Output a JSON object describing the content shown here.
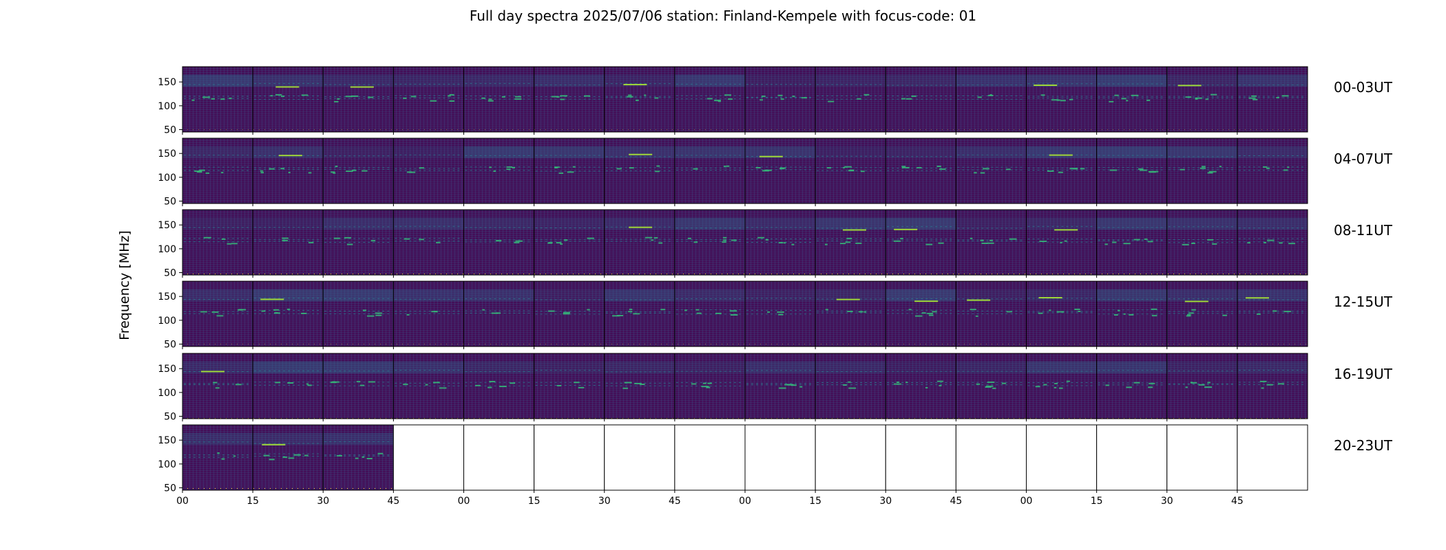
{
  "chart_data": {
    "type": "heatmap",
    "title": "Full day spectra 2025/07/06 station: Finland-Kempele with focus-code: 01",
    "ylabel": "Frequency [MHz]",
    "xlabel": "",
    "ylim": [
      45,
      182
    ],
    "y_ticks": [
      "50",
      "100",
      "150"
    ],
    "x_tick_labels": [
      "00",
      "15",
      "30",
      "45",
      "00",
      "15",
      "30",
      "45",
      "00",
      "15",
      "30",
      "45",
      "00",
      "15",
      "30",
      "45"
    ],
    "panels_per_row": 16,
    "panel_minutes": 15,
    "colormap": "viridis",
    "rows": [
      {
        "label": "00-03UT",
        "filled_panels": 16
      },
      {
        "label": "04-07UT",
        "filled_panels": 16
      },
      {
        "label": "08-11UT",
        "filled_panels": 16
      },
      {
        "label": "12-15UT",
        "filled_panels": 16
      },
      {
        "label": "16-19UT",
        "filled_panels": 16
      },
      {
        "label": "20-23UT",
        "filled_panels": 3
      }
    ],
    "bright_band_mhz": [
      140,
      165
    ],
    "persistent_lines_mhz": [
      120,
      115,
      145
    ],
    "marker_line_mhz": 47,
    "marker_line_color": "#fde725"
  }
}
